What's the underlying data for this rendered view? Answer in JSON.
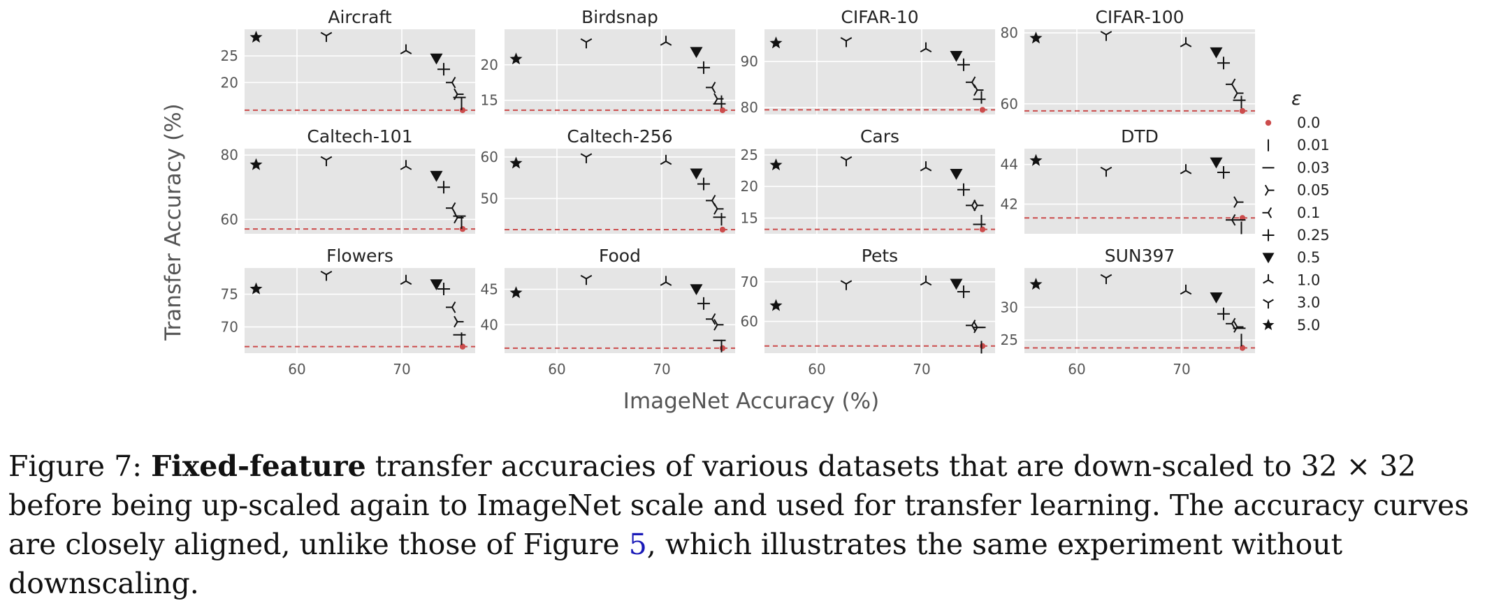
{
  "chart_data": {
    "type": "scatter",
    "layout": "grid 3x4 small multiples with shared x axis",
    "xlabel": "ImageNet Accuracy (%)",
    "ylabel": "Transfer Accuracy (%)",
    "xlim": [
      55,
      77
    ],
    "x_ticks": [
      60,
      70
    ],
    "grid": true,
    "background_color": "#e5e5e5",
    "baseline_color": "#cc4c4c",
    "legend": {
      "title": "ε",
      "placement": "right",
      "entries": [
        {
          "label": "0.0",
          "marker": "dot"
        },
        {
          "label": "0.01",
          "marker": "vline"
        },
        {
          "label": "0.03",
          "marker": "hline"
        },
        {
          "label": "0.05",
          "marker": "tri-left"
        },
        {
          "label": "0.1",
          "marker": "tri-right"
        },
        {
          "label": "0.25",
          "marker": "plus"
        },
        {
          "label": "0.5",
          "marker": "triangle-down"
        },
        {
          "label": "1.0",
          "marker": "tri-down"
        },
        {
          "label": "3.0",
          "marker": "tri-up"
        },
        {
          "label": "5.0",
          "marker": "star"
        }
      ]
    },
    "epsilons": [
      "0.0",
      "0.01",
      "0.03",
      "0.05",
      "0.1",
      "0.25",
      "0.5",
      "1.0",
      "3.0",
      "5.0"
    ],
    "imagenet_acc": [
      75.8,
      75.7,
      75.5,
      75.3,
      74.8,
      74.0,
      73.3,
      70.4,
      62.8,
      56.1
    ],
    "panels": [
      {
        "title": "Aircraft",
        "ylim": [
          14,
          30
        ],
        "yticks": [
          20,
          25
        ],
        "baseline": 14.8,
        "values": [
          14.8,
          16.0,
          17.2,
          17.8,
          20.0,
          22.5,
          24.5,
          26.0,
          28.8,
          28.5
        ]
      },
      {
        "title": "Birdsnap",
        "ylim": [
          13,
          25
        ],
        "yticks": [
          15,
          20
        ],
        "baseline": 13.6,
        "values": [
          13.6,
          14.8,
          14.5,
          15.2,
          16.8,
          19.6,
          21.8,
          23.2,
          23.2,
          20.8
        ]
      },
      {
        "title": "CIFAR-10",
        "ylim": [
          78.5,
          97
        ],
        "yticks": [
          80,
          90
        ],
        "baseline": 79.5,
        "values": [
          79.5,
          82.2,
          81.8,
          83.8,
          85.5,
          89.3,
          91.2,
          92.8,
          94.5,
          94.0
        ]
      },
      {
        "title": "CIFAR-100",
        "ylim": [
          57,
          81
        ],
        "yticks": [
          60,
          80
        ],
        "baseline": 58.0,
        "values": [
          58.0,
          60.5,
          61.0,
          63.0,
          65.5,
          71.5,
          74.5,
          77.0,
          79.5,
          78.5
        ]
      },
      {
        "title": "Caltech-101",
        "ylim": [
          55.5,
          82
        ],
        "yticks": [
          60,
          80
        ],
        "baseline": 57.0,
        "values": [
          57.0,
          59.0,
          61.0,
          60.5,
          63.5,
          70.0,
          73.5,
          76.5,
          78.5,
          77.0
        ]
      },
      {
        "title": "Caltech-256",
        "ylim": [
          41.5,
          62
        ],
        "yticks": [
          50,
          60
        ],
        "baseline": 42.5,
        "values": [
          42.5,
          45.0,
          45.5,
          47.5,
          49.5,
          53.5,
          56.0,
          59.0,
          60.0,
          58.5
        ]
      },
      {
        "title": "Cars",
        "ylim": [
          12.5,
          26
        ],
        "yticks": [
          15,
          20,
          25
        ],
        "baseline": 13.2,
        "values": [
          13.2,
          14.5,
          14.0,
          17.0,
          17.0,
          19.5,
          22.0,
          23.0,
          24.2,
          23.4
        ]
      },
      {
        "title": "DTD",
        "ylim": [
          40.5,
          44.8
        ],
        "yticks": [
          42,
          44
        ],
        "baseline": 41.3,
        "values": [
          41.3,
          40.8,
          41.2,
          42.1,
          41.2,
          43.6,
          44.1,
          43.7,
          43.7,
          44.2
        ]
      },
      {
        "title": "Flowers",
        "ylim": [
          66,
          79
        ],
        "yticks": [
          70,
          75
        ],
        "baseline": 67.0,
        "values": [
          67.0,
          68.2,
          68.8,
          70.8,
          73.0,
          75.8,
          76.5,
          77.0,
          78.0,
          75.8
        ]
      },
      {
        "title": "Food",
        "ylim": [
          36,
          48
        ],
        "yticks": [
          40,
          45
        ],
        "baseline": 36.7,
        "values": [
          36.7,
          37.0,
          37.8,
          40.0,
          40.8,
          43.0,
          45.0,
          46.0,
          46.5,
          44.5
        ]
      },
      {
        "title": "Pets",
        "ylim": [
          52,
          73.5
        ],
        "yticks": [
          60,
          70
        ],
        "baseline": 53.8,
        "values": [
          53.8,
          53.5,
          58.5,
          58.5,
          59.0,
          67.5,
          69.5,
          70.0,
          69.5,
          64.0
        ]
      },
      {
        "title": "SUN397",
        "ylim": [
          23,
          36
        ],
        "yticks": [
          25,
          30
        ],
        "baseline": 23.8,
        "values": [
          23.8,
          25.0,
          26.8,
          27.0,
          27.5,
          29.0,
          31.5,
          32.5,
          34.5,
          33.5
        ]
      }
    ]
  },
  "caption": {
    "label": "Figure 7:",
    "bold": "Fixed-feature",
    "text1": "transfer accuracies of various datasets that are down-scaled to 32 × 32 before being up-scaled again to ImageNet scale and used for transfer learning. The accuracy curves are closely aligned, unlike those of Figure",
    "ref": "5",
    "text2": ", which illustrates the same experiment without downscaling."
  }
}
